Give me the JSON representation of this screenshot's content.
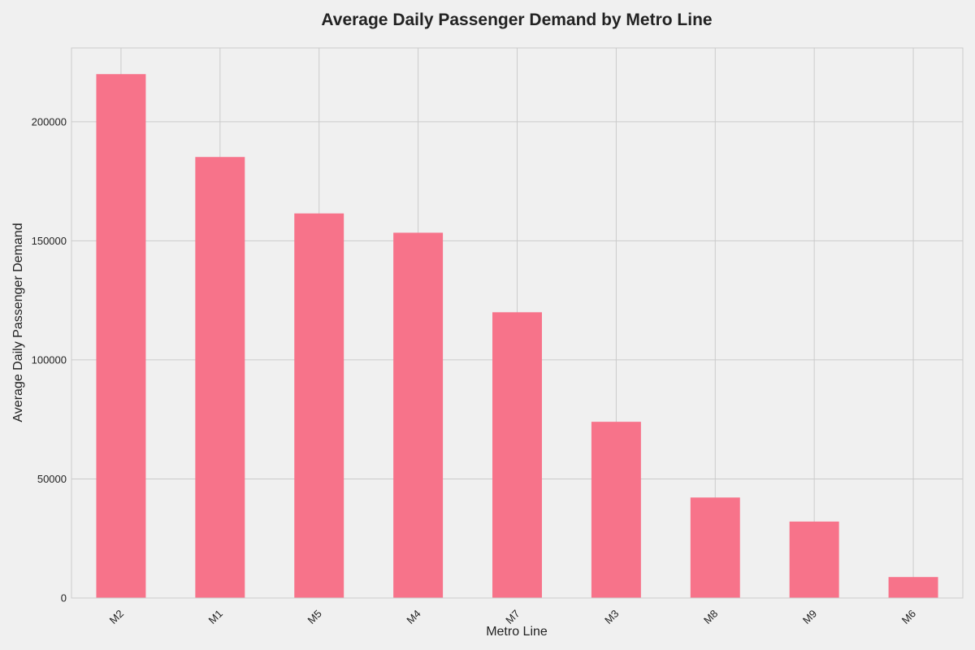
{
  "chart_data": {
    "type": "bar",
    "title": "Average Daily Passenger Demand by Metro Line",
    "xlabel": "Metro Line",
    "ylabel": "Average Daily Passenger Demand",
    "categories": [
      "M2",
      "M1",
      "M5",
      "M4",
      "M7",
      "M3",
      "M8",
      "M9",
      "M6"
    ],
    "values": [
      220000,
      185200,
      161500,
      153400,
      120000,
      74000,
      42200,
      32100,
      8800
    ],
    "yticks": [
      0,
      50000,
      100000,
      150000,
      200000
    ],
    "ytick_labels": [
      "0",
      "50000",
      "100000",
      "150000",
      "200000"
    ],
    "ylim": [
      0,
      231000
    ],
    "grid": true,
    "legend": "none",
    "colors": {
      "bar": "#f7738a",
      "background": "#f0f0f0",
      "grid": "#cbcbcb",
      "frame": "#cbcbcb",
      "text": "#222222"
    }
  }
}
